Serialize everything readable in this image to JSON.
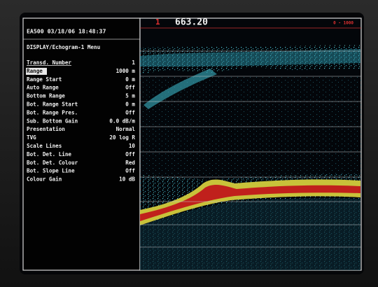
{
  "header": {
    "device": "EA500 03/18/06 18:48:37",
    "menu_title": "DISPLAY/Echogram-1 Menu"
  },
  "menu": [
    {
      "label": "Transd. Number",
      "value": "1"
    },
    {
      "label": "Range",
      "value": "1000 m"
    },
    {
      "label": "Range Start",
      "value": "0 m"
    },
    {
      "label": "Auto Range",
      "value": "Off"
    },
    {
      "label": "Bottom Range",
      "value": "5 m"
    },
    {
      "label": "Bot. Range Start",
      "value": "0 m"
    },
    {
      "label": "Bot. Range Pres.",
      "value": "Off"
    },
    {
      "label": "Sub. Bottom Gain",
      "value": "0.0 dB/m"
    },
    {
      "label": "Presentation",
      "value": "Normal"
    },
    {
      "label": "TVG",
      "value": "20 log R"
    },
    {
      "label": "Scale Lines",
      "value": "10"
    },
    {
      "label": "Bot. Det. Line",
      "value": "Off"
    },
    {
      "label": "Bot. Det. Colour",
      "value": "Red"
    },
    {
      "label": "Bot. Slope Line",
      "value": "Off"
    },
    {
      "label": "Colour Gain",
      "value": "10 dB"
    }
  ],
  "echogram": {
    "channel": "1",
    "depth": "663.20",
    "range": "0 - 1000"
  }
}
